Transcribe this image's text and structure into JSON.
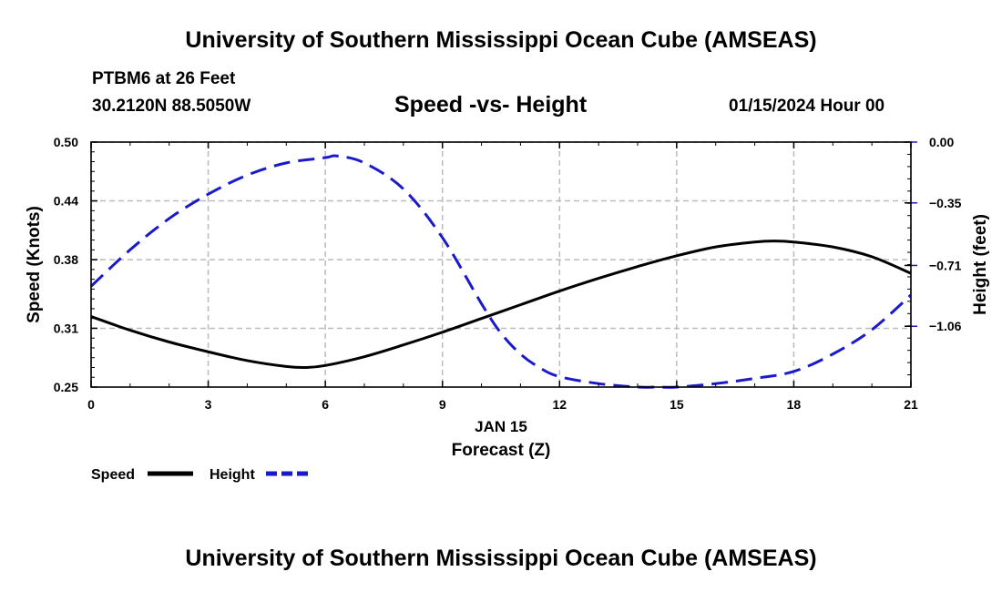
{
  "header": {
    "title": "University of Southern Mississippi Ocean Cube (AMSEAS)",
    "station": "PTBM6 at 26 Feet",
    "coords": "30.2120N  88.5050W",
    "chart_title": "Speed -vs- Height",
    "datetime": "01/15/2024 Hour 00"
  },
  "footer": {
    "title": "University of Southern Mississippi Ocean Cube (AMSEAS)"
  },
  "chart_data": {
    "type": "line",
    "title": "Speed -vs- Height",
    "xlabel": "Forecast (Z)",
    "x_date_label": "JAN 15",
    "ylabel": "Speed (Knots)",
    "y2label": "Height (feet)",
    "xlim": [
      0,
      21
    ],
    "ylim": [
      0.25,
      0.5
    ],
    "y2lim": [
      -1.41,
      0.0
    ],
    "x_ticks": [
      0,
      3,
      6,
      9,
      12,
      15,
      18,
      21
    ],
    "y_ticks": [
      0.25,
      0.31,
      0.38,
      0.44,
      0.5
    ],
    "y_tick_labels": [
      "0.25",
      "0.31",
      "0.38",
      "0.44",
      "0.50"
    ],
    "y2_ticks": [
      0.0,
      -0.35,
      -0.71,
      -1.06
    ],
    "y2_tick_labels": [
      "0.00",
      "−0.35",
      "−0.71",
      "−1.06"
    ],
    "grid": true,
    "legend_position": "bottom-left",
    "series": [
      {
        "name": "Speed",
        "axis": "left",
        "color": "#000000",
        "style": "solid",
        "x": [
          0,
          1,
          2,
          3,
          4,
          5,
          5.5,
          6,
          7,
          8,
          9,
          10,
          11,
          12,
          13,
          14,
          15,
          16,
          17,
          17.5,
          18,
          19,
          20,
          21
        ],
        "values": [
          0.322,
          0.308,
          0.296,
          0.286,
          0.277,
          0.271,
          0.27,
          0.272,
          0.281,
          0.293,
          0.306,
          0.32,
          0.334,
          0.348,
          0.361,
          0.373,
          0.384,
          0.393,
          0.398,
          0.399,
          0.398,
          0.393,
          0.383,
          0.366
        ]
      },
      {
        "name": "Height",
        "axis": "right",
        "color": "#1a1acc",
        "style": "dashed",
        "x": [
          0,
          1,
          2,
          3,
          4,
          5,
          6,
          6.3,
          7,
          8,
          9,
          10,
          10.5,
          11,
          11.5,
          12,
          13,
          14,
          14.5,
          15,
          16,
          17,
          18,
          19,
          20,
          21
        ],
        "values": [
          -0.83,
          -0.62,
          -0.44,
          -0.3,
          -0.19,
          -0.12,
          -0.09,
          -0.08,
          -0.12,
          -0.27,
          -0.55,
          -0.93,
          -1.1,
          -1.22,
          -1.3,
          -1.35,
          -1.39,
          -1.41,
          -1.41,
          -1.41,
          -1.39,
          -1.36,
          -1.32,
          -1.22,
          -1.08,
          -0.88
        ]
      }
    ]
  }
}
